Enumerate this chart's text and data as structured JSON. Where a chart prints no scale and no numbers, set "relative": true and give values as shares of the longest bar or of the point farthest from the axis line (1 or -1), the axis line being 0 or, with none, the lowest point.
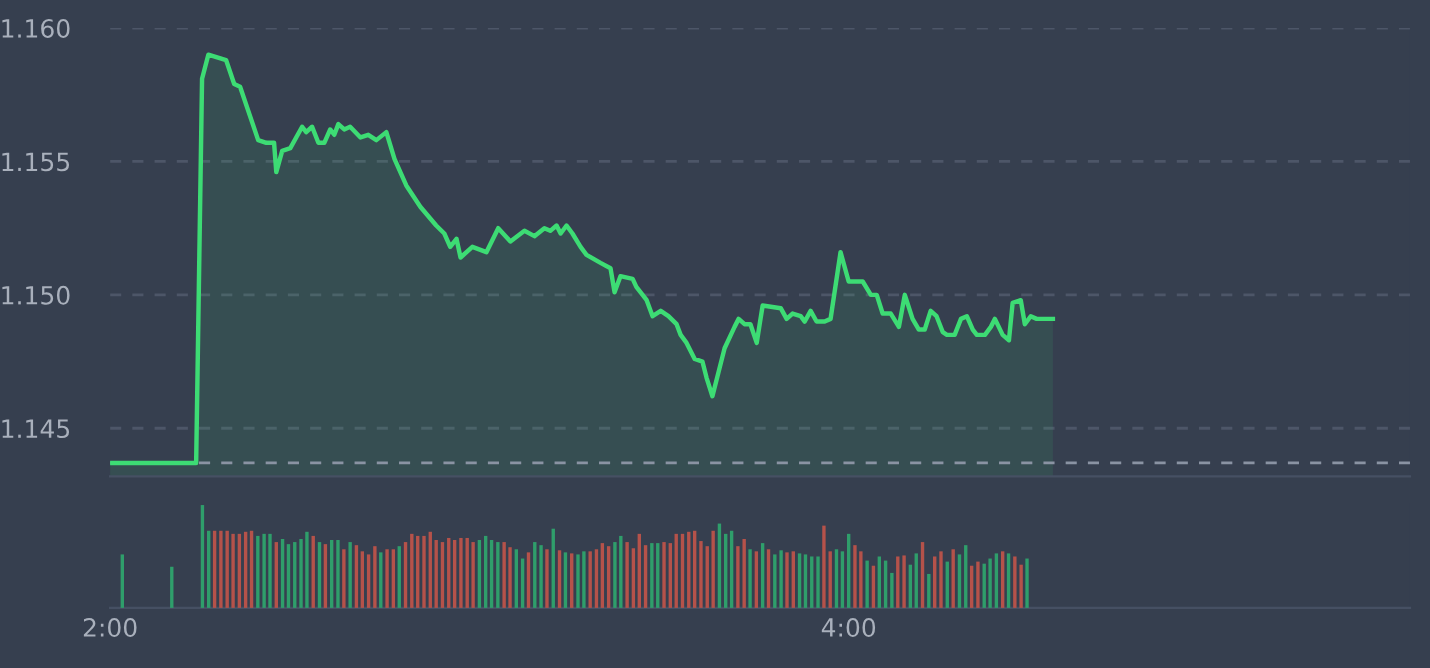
{
  "chart_data": [
    {
      "type": "area",
      "xlim": [
        2,
        5.52
      ],
      "ylim": [
        1.1432,
        1.16
      ],
      "yticks": [
        {
          "value": 1.145,
          "label": "1.145"
        },
        {
          "value": 1.15,
          "label": "1.150"
        },
        {
          "value": 1.155,
          "label": "1.155"
        },
        {
          "value": 1.16,
          "label": "1.160"
        }
      ],
      "grid": "y",
      "tick_labels": "y",
      "legend": false,
      "ref_lines": [
        {
          "axis": "y",
          "value": 1.1437,
          "color": "#8a93a3",
          "line_style": "dashed"
        }
      ],
      "series": [
        {
          "color": "#3ddc74",
          "x": [
            2.0,
            2.233,
            2.249,
            2.266,
            2.314,
            2.336,
            2.352,
            2.401,
            2.423,
            2.444,
            2.45,
            2.466,
            2.488,
            2.52,
            2.531,
            2.547,
            2.564,
            2.58,
            2.596,
            2.607,
            2.618,
            2.634,
            2.65,
            2.678,
            2.699,
            2.721,
            2.748,
            2.77,
            2.802,
            2.84,
            2.883,
            2.905,
            2.921,
            2.938,
            2.949,
            2.981,
            3.019,
            3.051,
            3.084,
            3.122,
            3.149,
            3.176,
            3.192,
            3.209,
            3.22,
            3.236,
            3.252,
            3.274,
            3.29,
            3.328,
            3.355,
            3.366,
            3.382,
            3.415,
            3.425,
            3.442,
            3.453,
            3.469,
            3.491,
            3.512,
            3.534,
            3.545,
            3.561,
            3.583,
            3.604,
            3.615,
            3.631,
            3.664,
            3.691,
            3.702,
            3.718,
            3.734,
            3.751,
            3.767,
            3.816,
            3.832,
            3.848,
            3.87,
            3.881,
            3.897,
            3.913,
            3.935,
            3.951,
            3.978,
            4.0,
            4.038,
            4.06,
            4.076,
            4.092,
            4.114,
            4.136,
            4.152,
            4.173,
            4.19,
            4.206,
            4.222,
            4.238,
            4.255,
            4.266,
            4.287,
            4.304,
            4.32,
            4.336,
            4.347,
            4.369,
            4.385,
            4.396,
            4.417,
            4.434,
            4.444,
            4.466,
            4.477,
            4.493,
            4.509,
            4.553
          ],
          "values": [
            1.1437,
            1.1437,
            1.1581,
            1.159,
            1.1588,
            1.1579,
            1.1578,
            1.1558,
            1.1557,
            1.1557,
            1.1546,
            1.1554,
            1.1555,
            1.1563,
            1.1561,
            1.1563,
            1.1557,
            1.1557,
            1.1562,
            1.156,
            1.1564,
            1.1562,
            1.1563,
            1.1559,
            1.156,
            1.1558,
            1.1561,
            1.1551,
            1.1541,
            1.1533,
            1.1526,
            1.1523,
            1.1518,
            1.1521,
            1.1514,
            1.1518,
            1.1516,
            1.1525,
            1.152,
            1.1524,
            1.1522,
            1.1525,
            1.1524,
            1.1526,
            1.1523,
            1.1526,
            1.1523,
            1.1518,
            1.1515,
            1.1512,
            1.151,
            1.1501,
            1.1507,
            1.1506,
            1.1503,
            1.15,
            1.1498,
            1.1492,
            1.1494,
            1.1492,
            1.1489,
            1.1485,
            1.1482,
            1.1476,
            1.1475,
            1.1469,
            1.1462,
            1.148,
            1.1488,
            1.1491,
            1.1489,
            1.1489,
            1.1482,
            1.1496,
            1.1495,
            1.1491,
            1.1493,
            1.1492,
            1.149,
            1.1494,
            1.149,
            1.149,
            1.1491,
            1.1516,
            1.1505,
            1.1505,
            1.15,
            1.15,
            1.1493,
            1.1493,
            1.1488,
            1.15,
            1.1491,
            1.1487,
            1.1487,
            1.1494,
            1.1492,
            1.1486,
            1.1485,
            1.1485,
            1.1491,
            1.1492,
            1.1487,
            1.1485,
            1.1485,
            1.1488,
            1.1491,
            1.1485,
            1.1483,
            1.1497,
            1.1498,
            1.1489,
            1.1492,
            1.1491,
            1.1491
          ]
        }
      ]
    },
    {
      "type": "bar",
      "relative": true,
      "xlim": [
        2,
        5.52
      ],
      "xticks": [
        {
          "value": 2,
          "label": "2:00"
        },
        {
          "value": 4,
          "label": "4:00"
        }
      ],
      "tick_labels": "x",
      "grid": false,
      "legend": false,
      "x": [
        2.033,
        2.167,
        2.25,
        2.267,
        2.283,
        2.3,
        2.317,
        2.333,
        2.35,
        2.367,
        2.383,
        2.4,
        2.417,
        2.433,
        2.45,
        2.467,
        2.483,
        2.5,
        2.517,
        2.533,
        2.55,
        2.567,
        2.583,
        2.6,
        2.617,
        2.633,
        2.65,
        2.667,
        2.683,
        2.7,
        2.717,
        2.733,
        2.75,
        2.767,
        2.783,
        2.8,
        2.817,
        2.833,
        2.85,
        2.867,
        2.883,
        2.9,
        2.917,
        2.933,
        2.95,
        2.967,
        2.983,
        3.0,
        3.017,
        3.033,
        3.05,
        3.067,
        3.083,
        3.1,
        3.117,
        3.133,
        3.15,
        3.167,
        3.183,
        3.2,
        3.217,
        3.233,
        3.25,
        3.267,
        3.283,
        3.3,
        3.317,
        3.333,
        3.35,
        3.367,
        3.383,
        3.4,
        3.417,
        3.433,
        3.45,
        3.467,
        3.483,
        3.5,
        3.517,
        3.533,
        3.55,
        3.567,
        3.583,
        3.6,
        3.617,
        3.633,
        3.65,
        3.667,
        3.683,
        3.7,
        3.717,
        3.733,
        3.75,
        3.767,
        3.783,
        3.8,
        3.817,
        3.833,
        3.85,
        3.867,
        3.883,
        3.9,
        3.917,
        3.933,
        3.95,
        3.967,
        3.983,
        4.0,
        4.017,
        4.033,
        4.05,
        4.067,
        4.083,
        4.1,
        4.117,
        4.133,
        4.15,
        4.167,
        4.183,
        4.2,
        4.217,
        4.233,
        4.25,
        4.267,
        4.283,
        4.3,
        4.317,
        4.333,
        4.35,
        4.367,
        4.383,
        4.4,
        4.417,
        4.433,
        4.45,
        4.467,
        4.483
      ],
      "values": [
        0.52,
        0.4,
        1.0,
        0.75,
        0.75,
        0.75,
        0.75,
        0.72,
        0.72,
        0.74,
        0.75,
        0.7,
        0.72,
        0.72,
        0.64,
        0.67,
        0.62,
        0.64,
        0.67,
        0.74,
        0.7,
        0.64,
        0.62,
        0.66,
        0.66,
        0.57,
        0.64,
        0.61,
        0.55,
        0.52,
        0.6,
        0.54,
        0.57,
        0.57,
        0.6,
        0.64,
        0.72,
        0.7,
        0.7,
        0.74,
        0.66,
        0.64,
        0.68,
        0.66,
        0.68,
        0.68,
        0.64,
        0.66,
        0.7,
        0.66,
        0.64,
        0.64,
        0.59,
        0.57,
        0.48,
        0.54,
        0.64,
        0.61,
        0.57,
        0.77,
        0.56,
        0.54,
        0.53,
        0.52,
        0.55,
        0.55,
        0.57,
        0.63,
        0.6,
        0.64,
        0.7,
        0.64,
        0.58,
        0.72,
        0.61,
        0.63,
        0.63,
        0.64,
        0.63,
        0.72,
        0.72,
        0.74,
        0.75,
        0.65,
        0.6,
        0.75,
        0.82,
        0.72,
        0.75,
        0.6,
        0.67,
        0.57,
        0.55,
        0.63,
        0.57,
        0.52,
        0.56,
        0.54,
        0.55,
        0.53,
        0.52,
        0.5,
        0.5,
        0.8,
        0.55,
        0.57,
        0.55,
        0.72,
        0.61,
        0.55,
        0.46,
        0.41,
        0.5,
        0.46,
        0.34,
        0.5,
        0.51,
        0.42,
        0.53,
        0.64,
        0.33,
        0.5,
        0.55,
        0.45,
        0.57,
        0.52,
        0.61,
        0.41,
        0.45,
        0.43,
        0.48,
        0.53,
        0.55,
        0.53,
        0.5,
        0.42,
        0.48
      ],
      "colors": [
        "#2f9e6b",
        "#2f9e6b",
        "#2f9e6b",
        "#2f9e6b",
        "#b5524a",
        "#b5524a",
        "#b5524a",
        "#b5524a",
        "#b5524a",
        "#b5524a",
        "#b5524a",
        "#2f9e6b",
        "#2f9e6b",
        "#2f9e6b",
        "#b5524a",
        "#2f9e6b",
        "#2f9e6b",
        "#2f9e6b",
        "#2f9e6b",
        "#2f9e6b",
        "#b5524a",
        "#2f9e6b",
        "#b5524a",
        "#2f9e6b",
        "#2f9e6b",
        "#b5524a",
        "#2f9e6b",
        "#b5524a",
        "#b5524a",
        "#b5524a",
        "#b5524a",
        "#2f9e6b",
        "#b5524a",
        "#b5524a",
        "#2f9e6b",
        "#b5524a",
        "#b5524a",
        "#b5524a",
        "#b5524a",
        "#b5524a",
        "#b5524a",
        "#b5524a",
        "#b5524a",
        "#b5524a",
        "#b5524a",
        "#b5524a",
        "#b5524a",
        "#2f9e6b",
        "#2f9e6b",
        "#2f9e6b",
        "#2f9e6b",
        "#b5524a",
        "#b5524a",
        "#2f9e6b",
        "#2f9e6b",
        "#b5524a",
        "#2f9e6b",
        "#2f9e6b",
        "#b5524a",
        "#2f9e6b",
        "#b5524a",
        "#2f9e6b",
        "#b5524a",
        "#2f9e6b",
        "#2f9e6b",
        "#b5524a",
        "#b5524a",
        "#b5524a",
        "#b5524a",
        "#2f9e6b",
        "#2f9e6b",
        "#b5524a",
        "#b5524a",
        "#b5524a",
        "#b5524a",
        "#2f9e6b",
        "#2f9e6b",
        "#b5524a",
        "#b5524a",
        "#b5524a",
        "#b5524a",
        "#b5524a",
        "#b5524a",
        "#b5524a",
        "#b5524a",
        "#b5524a",
        "#2f9e6b",
        "#2f9e6b",
        "#2f9e6b",
        "#b5524a",
        "#b5524a",
        "#2f9e6b",
        "#b5524a",
        "#2f9e6b",
        "#b5524a",
        "#2f9e6b",
        "#2f9e6b",
        "#b5524a",
        "#b5524a",
        "#2f9e6b",
        "#2f9e6b",
        "#2f9e6b",
        "#2f9e6b",
        "#b5524a",
        "#b5524a",
        "#2f9e6b",
        "#2f9e6b",
        "#2f9e6b",
        "#b5524a",
        "#b5524a",
        "#2f9e6b",
        "#b5524a",
        "#2f9e6b",
        "#2f9e6b",
        "#2f9e6b",
        "#b5524a",
        "#b5524a",
        "#2f9e6b",
        "#2f9e6b",
        "#b5524a",
        "#2f9e6b",
        "#b5524a",
        "#b5524a",
        "#2f9e6b",
        "#b5524a",
        "#2f9e6b",
        "#2f9e6b",
        "#b5524a",
        "#b5524a",
        "#2f9e6b",
        "#2f9e6b",
        "#2f9e6b",
        "#b5524a",
        "#2f9e6b",
        "#b5524a",
        "#b5524a",
        "#2f9e6b"
      ]
    }
  ]
}
